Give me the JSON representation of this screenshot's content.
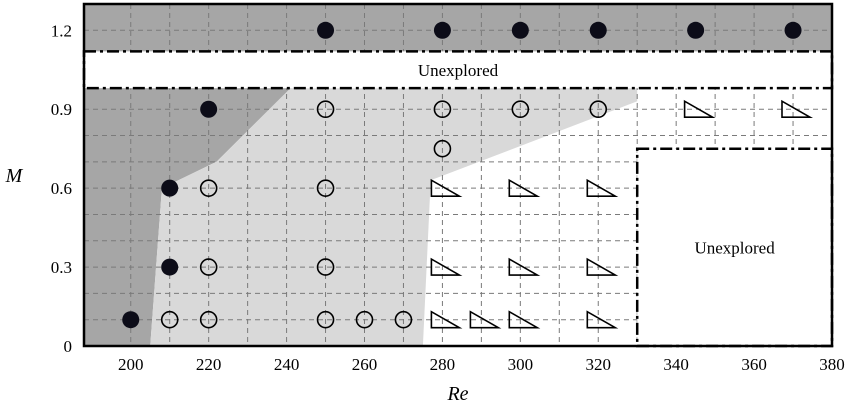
{
  "chart_data": {
    "type": "scatter",
    "title": "",
    "xlabel": "Re",
    "ylabel": "M",
    "xlim": [
      188,
      380
    ],
    "ylim": [
      0,
      1.3
    ],
    "x_ticks": [
      200,
      220,
      240,
      260,
      280,
      300,
      320,
      340,
      360,
      380
    ],
    "y_ticks": [
      0,
      0.3,
      0.6,
      0.9,
      1.2
    ],
    "x_tick_labels": [
      "200",
      "220",
      "240",
      "260",
      "280",
      "300",
      "320",
      "340",
      "360",
      "380"
    ],
    "y_tick_labels": [
      "0",
      "0.3",
      "0.6",
      "0.9",
      "1.2"
    ],
    "grid": true,
    "series": [
      {
        "marker": "filled-circle",
        "points": [
          [
            200,
            0.1
          ],
          [
            210,
            0.3
          ],
          [
            210,
            0.6
          ],
          [
            220,
            0.9
          ],
          [
            250,
            1.2
          ],
          [
            280,
            1.2
          ],
          [
            300,
            1.2
          ],
          [
            320,
            1.2
          ],
          [
            345,
            1.2
          ],
          [
            370,
            1.2
          ]
        ]
      },
      {
        "marker": "open-circle",
        "points": [
          [
            210,
            0.1
          ],
          [
            220,
            0.1
          ],
          [
            220,
            0.3
          ],
          [
            220,
            0.6
          ],
          [
            250,
            0.1
          ],
          [
            260,
            0.1
          ],
          [
            270,
            0.1
          ],
          [
            250,
            0.3
          ],
          [
            250,
            0.6
          ],
          [
            250,
            0.9
          ],
          [
            280,
            0.75
          ],
          [
            280,
            0.9
          ],
          [
            300,
            0.9
          ],
          [
            320,
            0.9
          ]
        ]
      },
      {
        "marker": "triangle",
        "points": [
          [
            280,
            0.1
          ],
          [
            290,
            0.1
          ],
          [
            300,
            0.1
          ],
          [
            320,
            0.1
          ],
          [
            280,
            0.3
          ],
          [
            300,
            0.3
          ],
          [
            320,
            0.3
          ],
          [
            280,
            0.6
          ],
          [
            300,
            0.6
          ],
          [
            320,
            0.6
          ],
          [
            345,
            0.9
          ],
          [
            370,
            0.9
          ]
        ]
      }
    ],
    "regions": [
      {
        "shade": "dark",
        "color": "#a6a6a6",
        "polygon": [
          [
            188,
            0
          ],
          [
            188,
            1.3
          ],
          [
            380,
            1.3
          ],
          [
            380,
            1.12
          ],
          [
            241,
            0.98
          ],
          [
            222,
            0.7
          ],
          [
            208,
            0.6
          ],
          [
            205,
            0
          ]
        ]
      },
      {
        "shade": "light",
        "color": "#d9d9d9",
        "polygon": [
          [
            205,
            0
          ],
          [
            208,
            0.6
          ],
          [
            222,
            0.7
          ],
          [
            241,
            0.98
          ],
          [
            330,
            0.98
          ],
          [
            330,
            0.93
          ],
          [
            277,
            0.63
          ],
          [
            275,
            0
          ]
        ]
      }
    ],
    "unexplored_boxes": [
      {
        "label": "Unexplored",
        "x": [
          188,
          380
        ],
        "y": [
          0.98,
          1.12
        ]
      },
      {
        "label": "Unexplored",
        "x": [
          330,
          380
        ],
        "y": [
          0,
          0.75
        ]
      }
    ],
    "colors": {
      "background": "#ffffff",
      "dark_region": "#a6a6a6",
      "light_region": "#d9d9d9",
      "grid": "#7a7a7a",
      "marker": "#000000",
      "filled_marker": "#0c0c18"
    }
  }
}
